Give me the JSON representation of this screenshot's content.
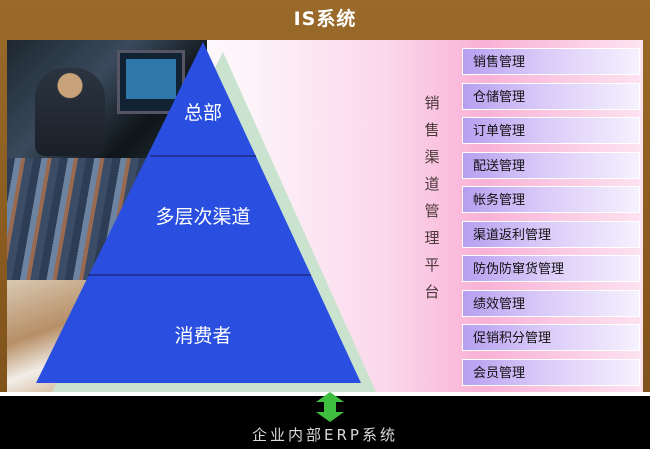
{
  "header": {
    "title": "IS系统"
  },
  "pyramid": {
    "levels": [
      "总部",
      "多层次渠道",
      "消费者"
    ]
  },
  "platform": {
    "vertical_title": [
      "销",
      "售",
      "渠",
      "道",
      "管",
      "理",
      "平",
      "台"
    ]
  },
  "menu": {
    "items": [
      "销售管理",
      "仓储管理",
      "订单管理",
      "配送管理",
      "帐务管理",
      "渠道返利管理",
      "防伪防窜货管理",
      "绩效管理",
      "促销积分管理",
      "会员管理"
    ]
  },
  "footer": {
    "title": "企业内部ERP系统"
  },
  "colors": {
    "frame": "#8a5a1e",
    "pyramid": "#2a4fe0",
    "pyramid_shadow": "#c9e3cf",
    "menu_item": "#c4b3f4",
    "arrow": "#3fbf3f"
  }
}
